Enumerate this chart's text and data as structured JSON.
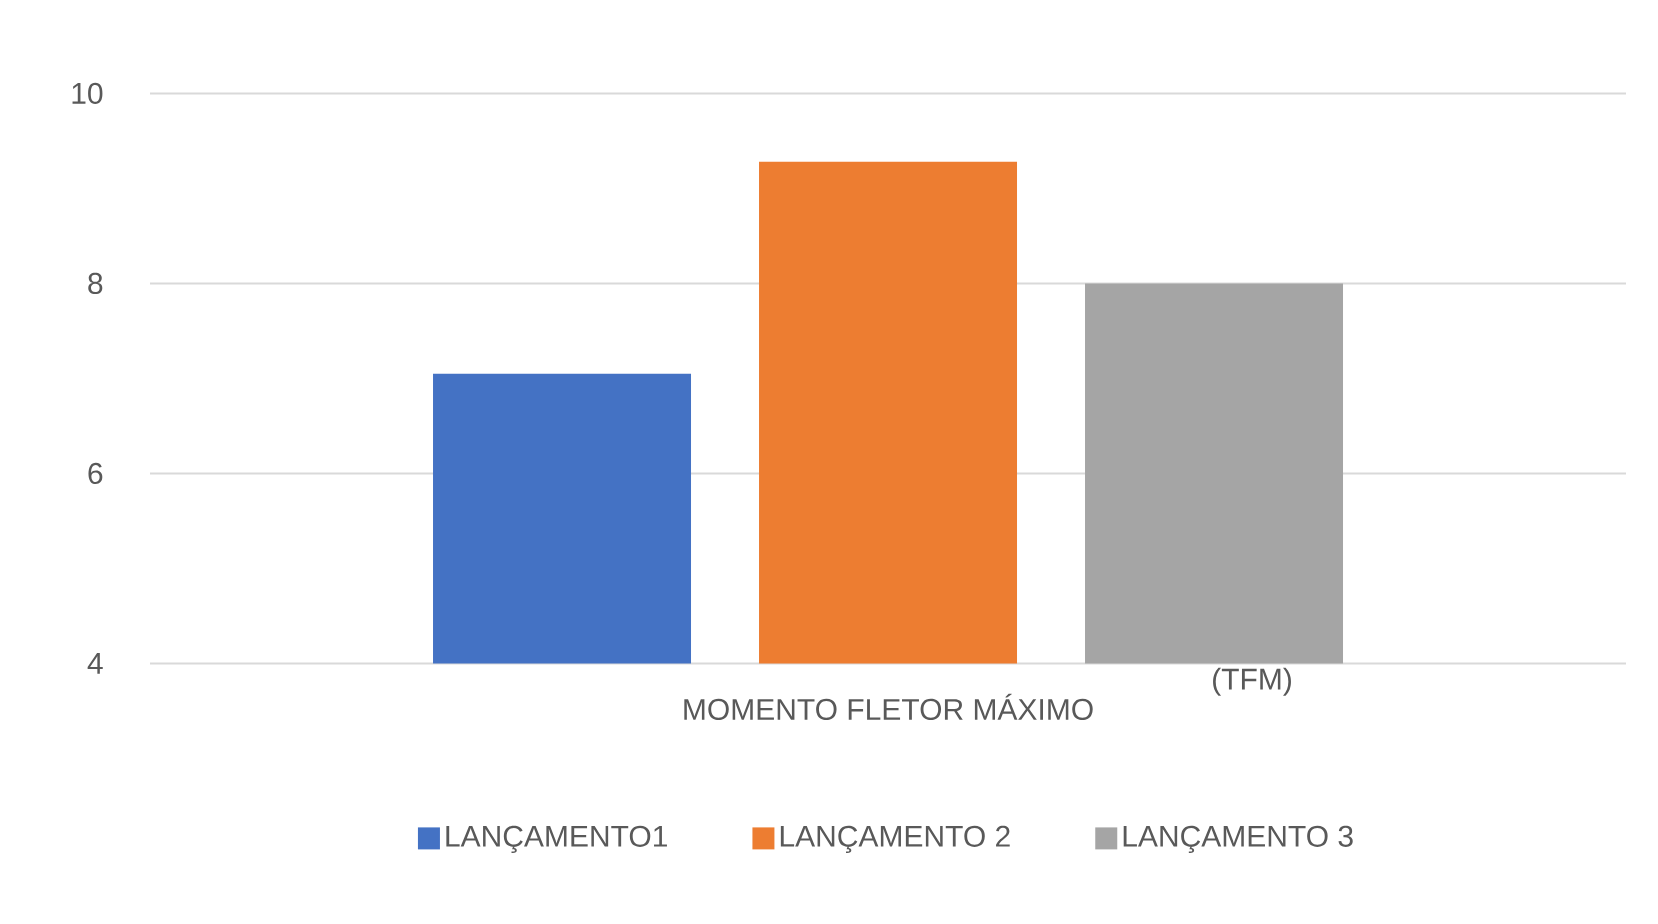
{
  "chart_data": {
    "type": "bar",
    "categories": [
      "MOMENTO FLETOR MÁXIMO"
    ],
    "series": [
      {
        "name": "LANÇAMENTO1",
        "color": "#4472c4",
        "values": [
          7.05
        ]
      },
      {
        "name": "LANÇAMENTO 2",
        "color": "#ed7d31",
        "values": [
          9.28
        ]
      },
      {
        "name": "LANÇAMENTO 3",
        "color": "#a5a5a5",
        "values": [
          8.0
        ]
      }
    ],
    "ylim": [
      4,
      10
    ],
    "yticks": [
      4,
      6,
      8,
      10
    ],
    "grid": "y",
    "legend": "bottom",
    "annotations": [
      "(TFM)"
    ]
  }
}
